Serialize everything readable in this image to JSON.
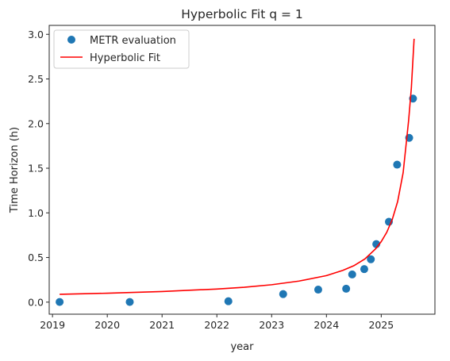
{
  "chart_data": {
    "type": "scatter",
    "title": "Hyperbolic Fit q = 1",
    "xlabel": "year",
    "ylabel": "Time Horizon (h)",
    "xlim": [
      2018.94,
      2025.98
    ],
    "ylim": [
      -0.135,
      3.1
    ],
    "x_ticks": [
      2019,
      2020,
      2021,
      2022,
      2023,
      2024,
      2025
    ],
    "y_ticks": [
      0.0,
      0.5,
      1.0,
      1.5,
      2.0,
      2.5,
      3.0
    ],
    "legend_position": "top-left",
    "grid": false,
    "series": [
      {
        "name": "METR evaluation",
        "kind": "scatter",
        "color": "#1f77b4",
        "points": [
          {
            "x": 2019.13,
            "y": 0.002
          },
          {
            "x": 2020.41,
            "y": 0.002
          },
          {
            "x": 2022.21,
            "y": 0.01
          },
          {
            "x": 2023.21,
            "y": 0.09
          },
          {
            "x": 2023.85,
            "y": 0.14
          },
          {
            "x": 2024.36,
            "y": 0.15
          },
          {
            "x": 2024.47,
            "y": 0.31
          },
          {
            "x": 2024.69,
            "y": 0.37
          },
          {
            "x": 2024.81,
            "y": 0.48
          },
          {
            "x": 2024.91,
            "y": 0.65
          },
          {
            "x": 2025.14,
            "y": 0.9
          },
          {
            "x": 2025.29,
            "y": 1.54
          },
          {
            "x": 2025.51,
            "y": 1.84
          },
          {
            "x": 2025.58,
            "y": 2.28
          }
        ]
      },
      {
        "name": "Hyperbolic Fit",
        "kind": "line",
        "color": "#ff0000",
        "points": [
          {
            "x": 2019.13,
            "y": 0.088
          },
          {
            "x": 2020.0,
            "y": 0.1
          },
          {
            "x": 2021.0,
            "y": 0.119
          },
          {
            "x": 2022.0,
            "y": 0.147
          },
          {
            "x": 2022.5,
            "y": 0.167
          },
          {
            "x": 2023.0,
            "y": 0.195
          },
          {
            "x": 2023.5,
            "y": 0.236
          },
          {
            "x": 2024.0,
            "y": 0.297
          },
          {
            "x": 2024.3,
            "y": 0.356
          },
          {
            "x": 2024.5,
            "y": 0.408
          },
          {
            "x": 2024.7,
            "y": 0.483
          },
          {
            "x": 2024.9,
            "y": 0.599
          },
          {
            "x": 2025.0,
            "y": 0.678
          },
          {
            "x": 2025.1,
            "y": 0.781
          },
          {
            "x": 2025.2,
            "y": 0.923
          },
          {
            "x": 2025.3,
            "y": 1.128
          },
          {
            "x": 2025.4,
            "y": 1.45
          },
          {
            "x": 2025.5,
            "y": 2.034
          },
          {
            "x": 2025.55,
            "y": 2.402
          },
          {
            "x": 2025.6,
            "y": 2.95
          }
        ]
      }
    ]
  },
  "colors": {
    "axes": "#262626",
    "background": "#ffffff"
  }
}
